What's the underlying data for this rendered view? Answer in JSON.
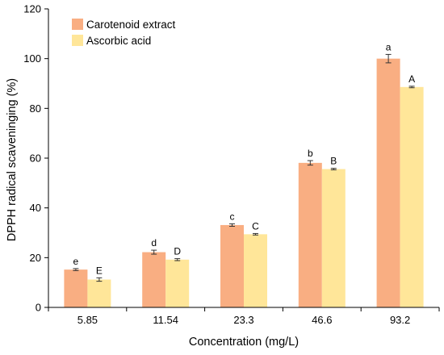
{
  "chart_data": {
    "type": "bar",
    "title": "",
    "xlabel": "Concentration (mg/L)",
    "ylabel": "DPPH radical scaveninging (%)",
    "categories": [
      "5.85",
      "11.54",
      "23.3",
      "46.6",
      "93.2"
    ],
    "ylim": [
      0,
      120
    ],
    "yticks": [
      0,
      20,
      40,
      60,
      80,
      100,
      120
    ],
    "grid": false,
    "legend_position": "top-left",
    "series": [
      {
        "name": "Carotenoid extract",
        "color": "#F9AE82",
        "values": [
          15.2,
          22.2,
          33.1,
          58.1,
          100.0
        ],
        "errors": [
          0.4,
          0.8,
          0.5,
          0.9,
          1.7
        ],
        "labels": [
          "e",
          "d",
          "c",
          "b",
          "a"
        ]
      },
      {
        "name": "Ascorbic acid",
        "color": "#FFE699",
        "values": [
          11.2,
          19.2,
          29.4,
          55.6,
          88.6
        ],
        "errors": [
          0.7,
          0.4,
          0.3,
          0.3,
          0.3
        ],
        "labels": [
          "E",
          "D",
          "C",
          "B",
          "A"
        ]
      }
    ]
  }
}
